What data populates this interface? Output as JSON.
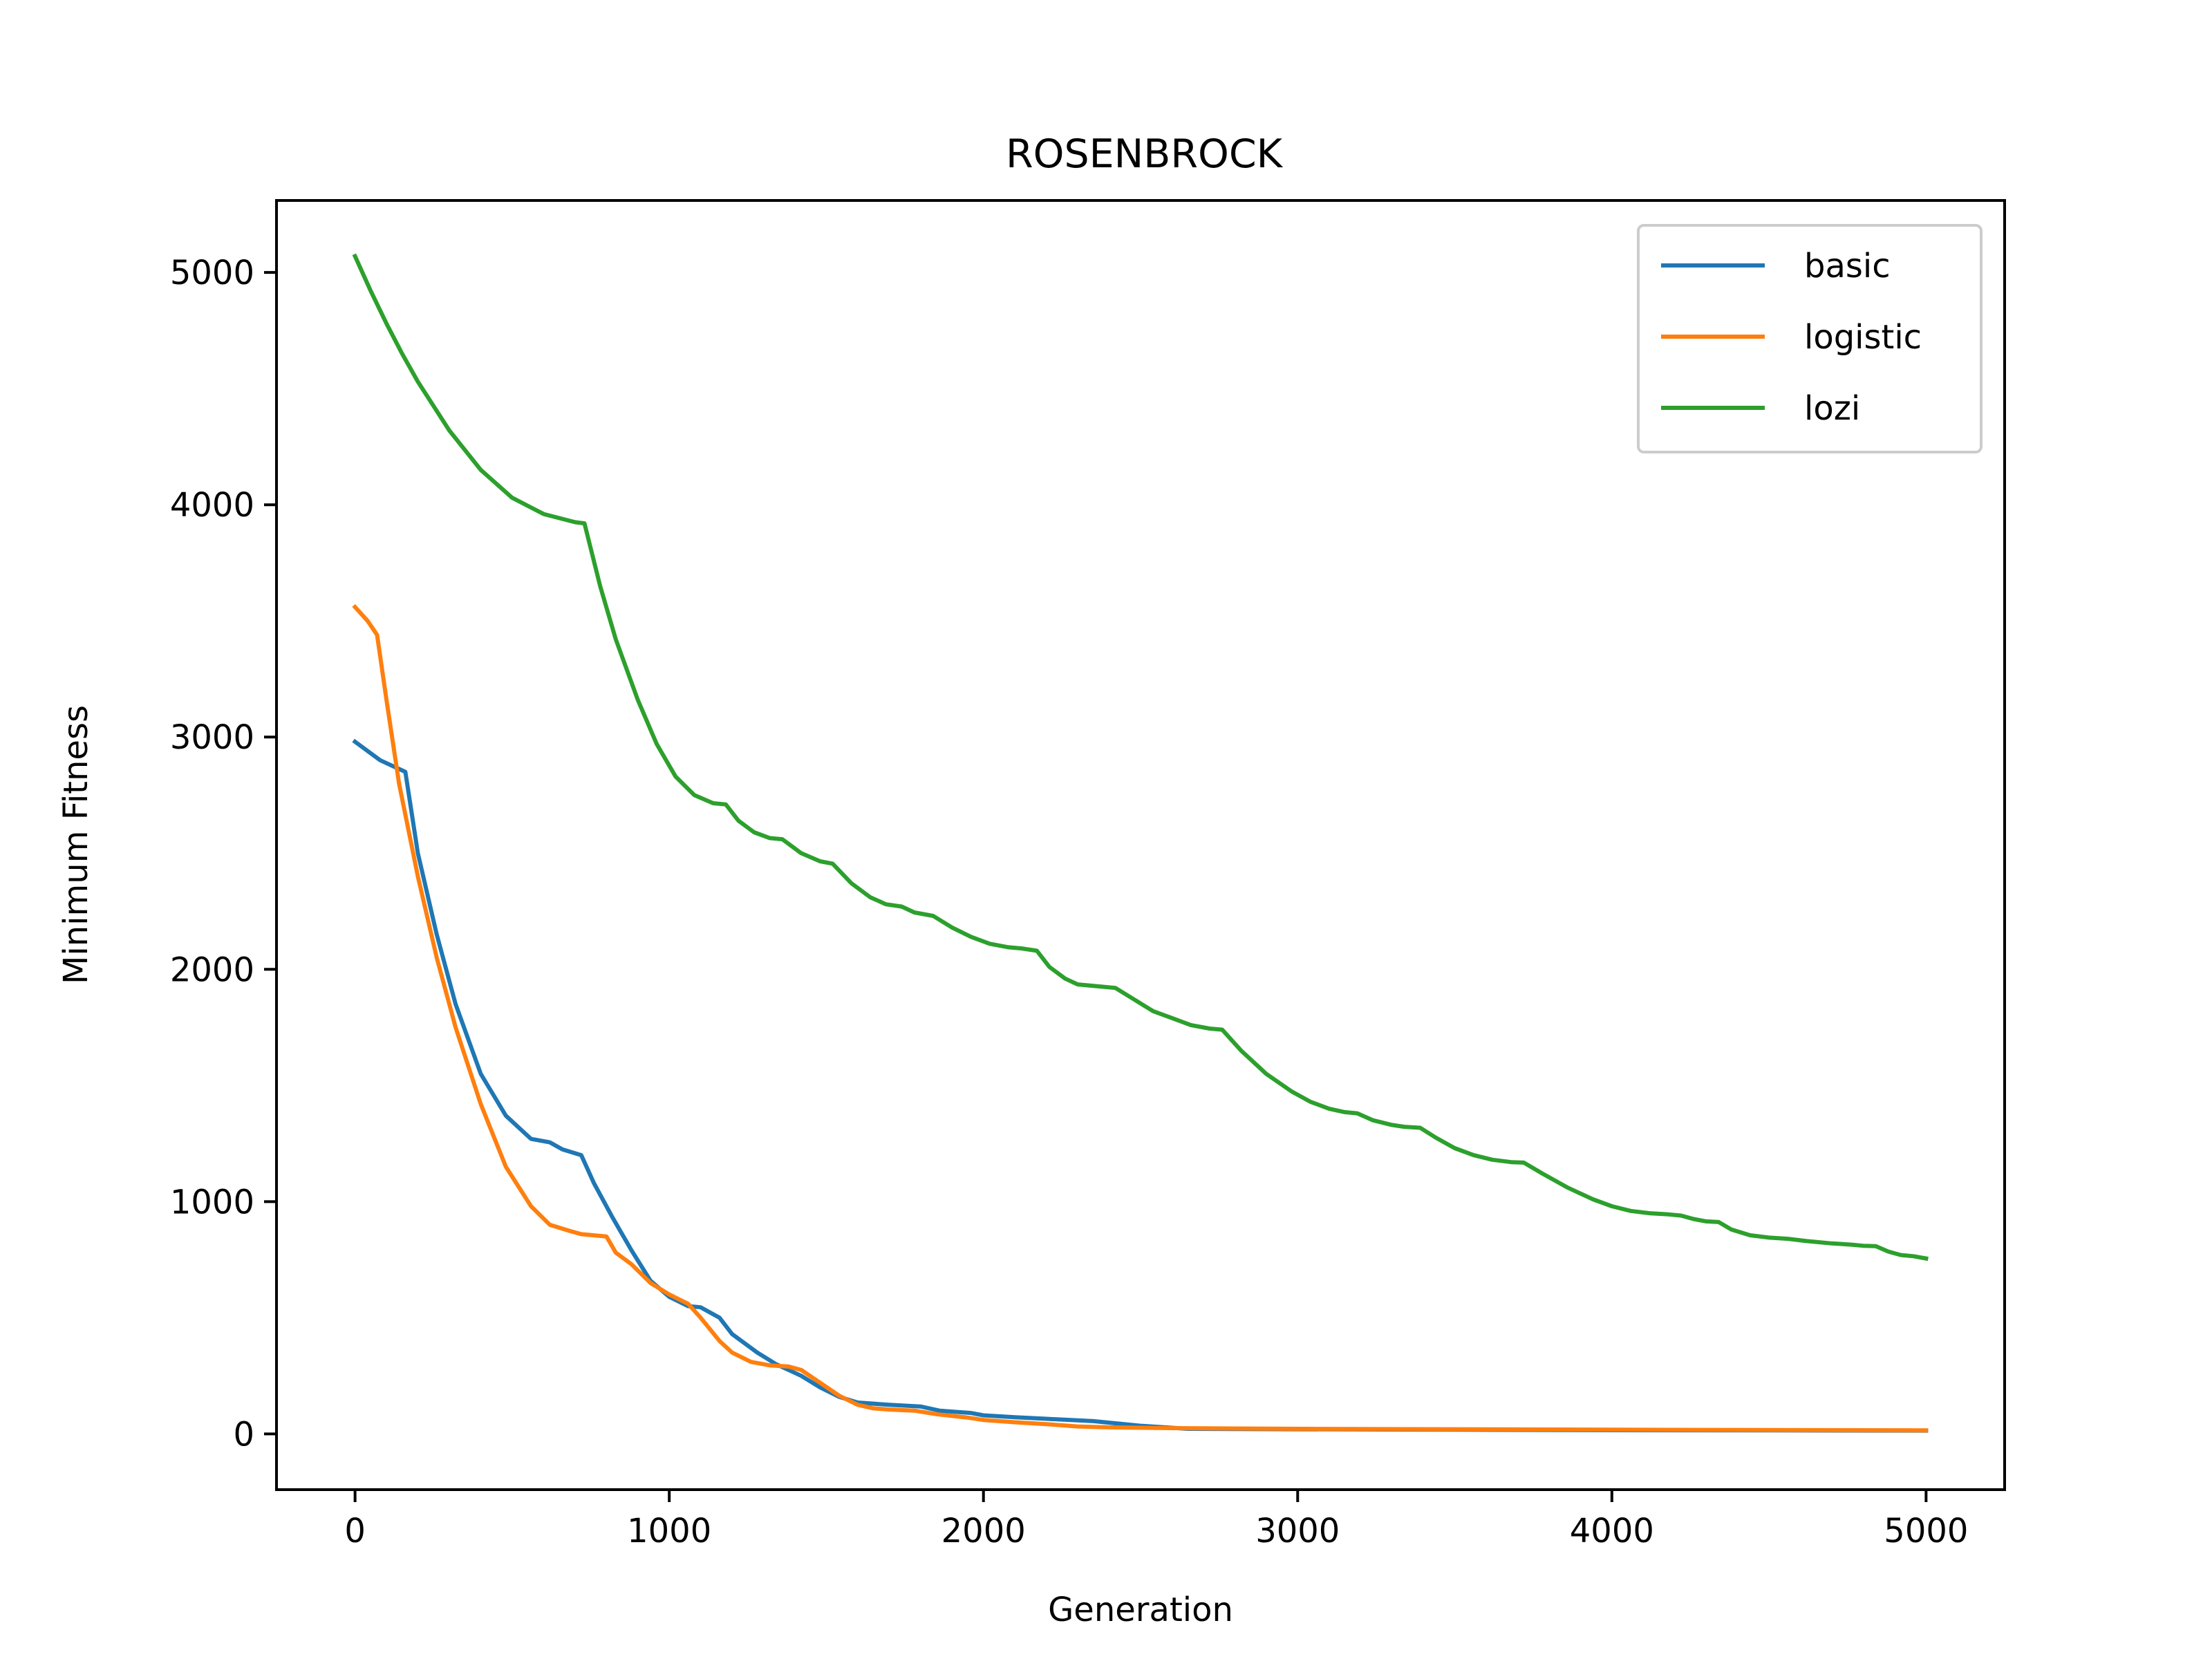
{
  "chart_data": {
    "type": "line",
    "title": "ROSENBROCK",
    "xlabel": "Generation",
    "ylabel": "Minimum Fitness",
    "xlim": [
      -250,
      5250
    ],
    "ylim": [
      -240,
      5310
    ],
    "xticks": [
      0,
      1000,
      2000,
      3000,
      4000,
      5000
    ],
    "yticks": [
      0,
      1000,
      2000,
      3000,
      4000,
      5000
    ],
    "legend_position": "top-right",
    "grid": false,
    "series": [
      {
        "name": "basic",
        "color": "#1f77b4",
        "points": [
          [
            0,
            2980
          ],
          [
            80,
            2900
          ],
          [
            160,
            2850
          ],
          [
            200,
            2500
          ],
          [
            260,
            2150
          ],
          [
            320,
            1850
          ],
          [
            400,
            1550
          ],
          [
            480,
            1370
          ],
          [
            560,
            1270
          ],
          [
            620,
            1255
          ],
          [
            660,
            1225
          ],
          [
            720,
            1200
          ],
          [
            760,
            1080
          ],
          [
            820,
            930
          ],
          [
            880,
            790
          ],
          [
            940,
            660
          ],
          [
            1000,
            590
          ],
          [
            1060,
            550
          ],
          [
            1100,
            545
          ],
          [
            1160,
            500
          ],
          [
            1200,
            430
          ],
          [
            1280,
            350
          ],
          [
            1340,
            300
          ],
          [
            1420,
            250
          ],
          [
            1480,
            200
          ],
          [
            1540,
            160
          ],
          [
            1600,
            135
          ],
          [
            1700,
            125
          ],
          [
            1800,
            118
          ],
          [
            1860,
            100
          ],
          [
            1960,
            90
          ],
          [
            2000,
            80
          ],
          [
            2100,
            72
          ],
          [
            2200,
            65
          ],
          [
            2350,
            55
          ],
          [
            2500,
            35
          ],
          [
            2650,
            22
          ],
          [
            3000,
            20
          ],
          [
            3500,
            18
          ],
          [
            4000,
            16
          ],
          [
            4500,
            15
          ],
          [
            5000,
            14
          ]
        ]
      },
      {
        "name": "logistic",
        "color": "#ff7f0e",
        "points": [
          [
            0,
            3560
          ],
          [
            40,
            3500
          ],
          [
            70,
            3440
          ],
          [
            100,
            3160
          ],
          [
            140,
            2800
          ],
          [
            200,
            2400
          ],
          [
            260,
            2050
          ],
          [
            320,
            1750
          ],
          [
            400,
            1420
          ],
          [
            480,
            1150
          ],
          [
            560,
            980
          ],
          [
            620,
            900
          ],
          [
            680,
            875
          ],
          [
            720,
            860
          ],
          [
            800,
            850
          ],
          [
            830,
            780
          ],
          [
            880,
            730
          ],
          [
            940,
            650
          ],
          [
            1000,
            600
          ],
          [
            1060,
            560
          ],
          [
            1100,
            500
          ],
          [
            1160,
            400
          ],
          [
            1200,
            350
          ],
          [
            1260,
            310
          ],
          [
            1320,
            295
          ],
          [
            1380,
            290
          ],
          [
            1420,
            275
          ],
          [
            1480,
            220
          ],
          [
            1540,
            165
          ],
          [
            1600,
            125
          ],
          [
            1650,
            110
          ],
          [
            1700,
            105
          ],
          [
            1780,
            100
          ],
          [
            1850,
            85
          ],
          [
            1950,
            70
          ],
          [
            2000,
            60
          ],
          [
            2100,
            50
          ],
          [
            2200,
            42
          ],
          [
            2300,
            32
          ],
          [
            2400,
            28
          ],
          [
            2600,
            25
          ],
          [
            3000,
            22
          ],
          [
            4000,
            18
          ],
          [
            5000,
            15
          ]
        ]
      },
      {
        "name": "lozi",
        "color": "#2ca02c",
        "points": [
          [
            0,
            5070
          ],
          [
            50,
            4920
          ],
          [
            100,
            4780
          ],
          [
            150,
            4650
          ],
          [
            200,
            4530
          ],
          [
            300,
            4320
          ],
          [
            400,
            4150
          ],
          [
            500,
            4030
          ],
          [
            600,
            3960
          ],
          [
            700,
            3925
          ],
          [
            730,
            3920
          ],
          [
            780,
            3650
          ],
          [
            830,
            3420
          ],
          [
            900,
            3160
          ],
          [
            960,
            2970
          ],
          [
            1020,
            2830
          ],
          [
            1080,
            2750
          ],
          [
            1140,
            2715
          ],
          [
            1180,
            2710
          ],
          [
            1220,
            2640
          ],
          [
            1270,
            2590
          ],
          [
            1320,
            2565
          ],
          [
            1360,
            2560
          ],
          [
            1420,
            2500
          ],
          [
            1480,
            2465
          ],
          [
            1520,
            2455
          ],
          [
            1580,
            2370
          ],
          [
            1640,
            2310
          ],
          [
            1690,
            2280
          ],
          [
            1740,
            2270
          ],
          [
            1780,
            2245
          ],
          [
            1840,
            2230
          ],
          [
            1900,
            2180
          ],
          [
            1960,
            2140
          ],
          [
            2020,
            2110
          ],
          [
            2080,
            2095
          ],
          [
            2120,
            2090
          ],
          [
            2170,
            2080
          ],
          [
            2210,
            2010
          ],
          [
            2260,
            1960
          ],
          [
            2300,
            1935
          ],
          [
            2380,
            1925
          ],
          [
            2420,
            1920
          ],
          [
            2480,
            1870
          ],
          [
            2540,
            1820
          ],
          [
            2600,
            1790
          ],
          [
            2660,
            1760
          ],
          [
            2720,
            1745
          ],
          [
            2760,
            1740
          ],
          [
            2820,
            1650
          ],
          [
            2900,
            1550
          ],
          [
            2980,
            1475
          ],
          [
            3040,
            1430
          ],
          [
            3100,
            1400
          ],
          [
            3150,
            1385
          ],
          [
            3190,
            1380
          ],
          [
            3240,
            1350
          ],
          [
            3300,
            1330
          ],
          [
            3340,
            1322
          ],
          [
            3390,
            1318
          ],
          [
            3440,
            1275
          ],
          [
            3500,
            1230
          ],
          [
            3560,
            1200
          ],
          [
            3620,
            1180
          ],
          [
            3680,
            1170
          ],
          [
            3720,
            1168
          ],
          [
            3780,
            1120
          ],
          [
            3860,
            1060
          ],
          [
            3940,
            1010
          ],
          [
            4000,
            980
          ],
          [
            4060,
            960
          ],
          [
            4120,
            950
          ],
          [
            4180,
            945
          ],
          [
            4220,
            940
          ],
          [
            4260,
            925
          ],
          [
            4300,
            915
          ],
          [
            4340,
            912
          ],
          [
            4380,
            880
          ],
          [
            4440,
            855
          ],
          [
            4500,
            845
          ],
          [
            4560,
            840
          ],
          [
            4620,
            830
          ],
          [
            4700,
            820
          ],
          [
            4760,
            815
          ],
          [
            4800,
            810
          ],
          [
            4840,
            808
          ],
          [
            4880,
            785
          ],
          [
            4920,
            770
          ],
          [
            4960,
            765
          ],
          [
            5000,
            755
          ]
        ]
      }
    ]
  }
}
